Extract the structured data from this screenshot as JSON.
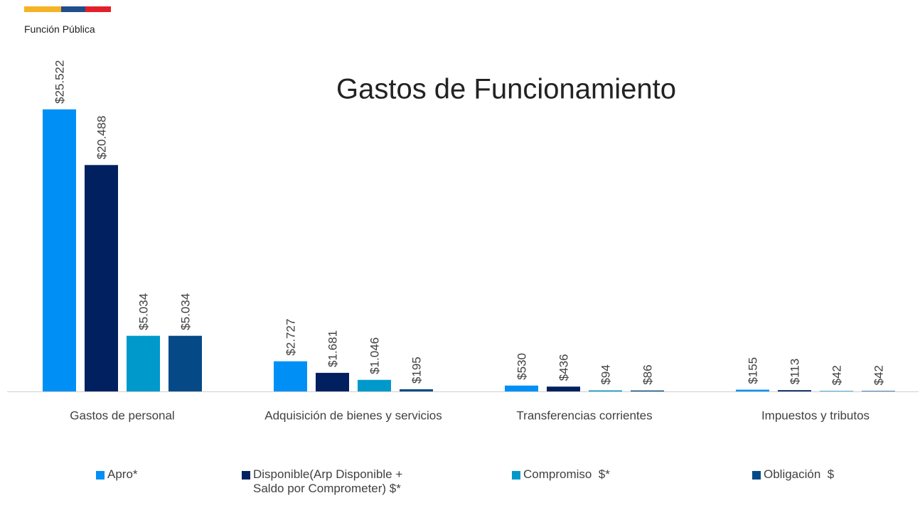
{
  "logo_text": "Función Pública",
  "chart_data": {
    "type": "bar",
    "title": "Gastos de Funcionamiento",
    "categories": [
      "Gastos de personal",
      "Adquisición de bienes y servicios",
      "Transferencias corrientes",
      "Impuestos y tributos"
    ],
    "series": [
      {
        "name": "Apro*",
        "color": "#0090f5",
        "values": [
          25522,
          2727,
          530,
          155
        ],
        "value_labels": [
          "$25.522",
          "$2.727",
          "$530",
          "$155"
        ]
      },
      {
        "name": "Disponible(Arp Disponible + Saldo por Comprometer) $*",
        "color": "#002060",
        "values": [
          20488,
          1681,
          436,
          113
        ],
        "value_labels": [
          "$20.488",
          "$1.681",
          "$436",
          "$113"
        ]
      },
      {
        "name": "Compromiso  $*",
        "color": "#0099cc",
        "values": [
          5034,
          1046,
          94,
          42
        ],
        "value_labels": [
          "$5.034",
          "$1.046",
          "$94",
          "$42"
        ]
      },
      {
        "name": "Obligación  $",
        "color": "#054a87",
        "values": [
          5034,
          195,
          86,
          42
        ],
        "value_labels": [
          "$5.034",
          "$195",
          "$86",
          "$42"
        ]
      }
    ],
    "legend": "bottom"
  }
}
